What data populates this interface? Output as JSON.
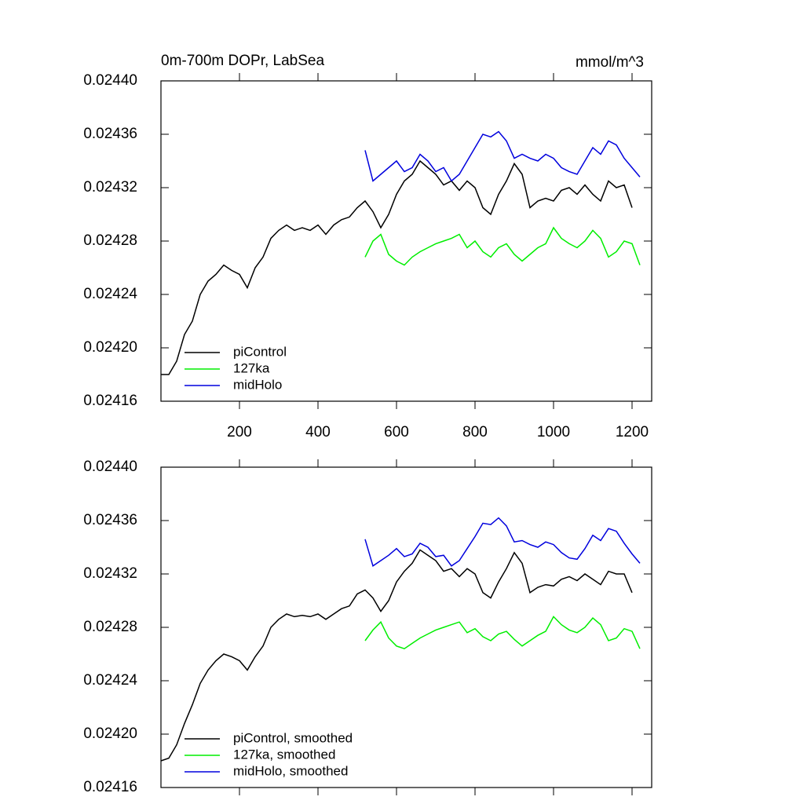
{
  "chart_data": [
    {
      "type": "line",
      "title": "0m-700m DOPr, LabSea",
      "units": "mmol/m^3",
      "xlim": [
        0,
        1250
      ],
      "xticks": [
        200,
        400,
        600,
        800,
        1000,
        1200
      ],
      "xtick_labels": true,
      "ylim": [
        0.02416,
        0.0244
      ],
      "yticks": [
        0.02416,
        {
          "value": 0.0242,
          "label": "0.02420"
        },
        0.02424,
        0.02428,
        0.02432,
        0.02436,
        {
          "value": 0.0244,
          "label": "0.02440"
        }
      ],
      "legend": "lower left",
      "series": [
        {
          "name": "piControl",
          "color": "#000000",
          "x": [
            0,
            20,
            40,
            60,
            80,
            100,
            120,
            140,
            160,
            180,
            200,
            220,
            240,
            260,
            280,
            300,
            320,
            340,
            360,
            380,
            400,
            420,
            440,
            460,
            480,
            500,
            520,
            540,
            560,
            580,
            600,
            620,
            640,
            660,
            680,
            700,
            720,
            740,
            760,
            780,
            800,
            820,
            840,
            860,
            880,
            900,
            920,
            940,
            960,
            980,
            1000,
            1020,
            1040,
            1060,
            1080,
            1100,
            1120,
            1140,
            1160,
            1180,
            1200
          ],
          "values": [
            0.02418,
            0.02418,
            0.02419,
            0.02421,
            0.02422,
            0.02424,
            0.02425,
            0.024255,
            0.024262,
            0.024258,
            0.024255,
            0.024245,
            0.02426,
            0.024268,
            0.024282,
            0.024288,
            0.024292,
            0.024288,
            0.02429,
            0.024288,
            0.024292,
            0.024285,
            0.024292,
            0.024296,
            0.024298,
            0.024305,
            0.02431,
            0.024302,
            0.02429,
            0.0243,
            0.024315,
            0.024325,
            0.02433,
            0.02434,
            0.024335,
            0.02433,
            0.024322,
            0.024325,
            0.024318,
            0.024325,
            0.02432,
            0.024305,
            0.0243,
            0.024315,
            0.024325,
            0.024338,
            0.02433,
            0.024305,
            0.02431,
            0.024312,
            0.02431,
            0.024318,
            0.02432,
            0.024315,
            0.024322,
            0.024315,
            0.02431,
            0.024325,
            0.02432,
            0.024322,
            0.024305
          ]
        },
        {
          "name": "127ka",
          "color": "#00ee00",
          "x": [
            520,
            540,
            560,
            580,
            600,
            620,
            640,
            660,
            680,
            700,
            720,
            740,
            760,
            780,
            800,
            820,
            840,
            860,
            880,
            900,
            920,
            940,
            960,
            980,
            1000,
            1020,
            1040,
            1060,
            1080,
            1100,
            1120,
            1140,
            1160,
            1180,
            1200,
            1220
          ],
          "values": [
            0.024268,
            0.02428,
            0.024285,
            0.02427,
            0.024265,
            0.024262,
            0.024268,
            0.024272,
            0.024275,
            0.024278,
            0.02428,
            0.024282,
            0.024285,
            0.024275,
            0.02428,
            0.024272,
            0.024268,
            0.024275,
            0.024278,
            0.02427,
            0.024265,
            0.02427,
            0.024275,
            0.024278,
            0.02429,
            0.024282,
            0.024278,
            0.024275,
            0.02428,
            0.024288,
            0.024282,
            0.024268,
            0.024272,
            0.02428,
            0.024278,
            0.024262
          ]
        },
        {
          "name": "midHolo",
          "color": "#0000dd",
          "x": [
            520,
            540,
            560,
            580,
            600,
            620,
            640,
            660,
            680,
            700,
            720,
            740,
            760,
            780,
            800,
            820,
            840,
            860,
            880,
            900,
            920,
            940,
            960,
            980,
            1000,
            1020,
            1040,
            1060,
            1080,
            1100,
            1120,
            1140,
            1160,
            1180,
            1200,
            1220
          ],
          "values": [
            0.024348,
            0.024325,
            0.02433,
            0.024335,
            0.02434,
            0.024332,
            0.024335,
            0.024345,
            0.02434,
            0.024332,
            0.024335,
            0.024325,
            0.02433,
            0.02434,
            0.02435,
            0.02436,
            0.024358,
            0.024362,
            0.024355,
            0.024342,
            0.024345,
            0.024342,
            0.02434,
            0.024345,
            0.024342,
            0.024335,
            0.024332,
            0.02433,
            0.02434,
            0.02435,
            0.024345,
            0.024355,
            0.024352,
            0.024342,
            0.024335,
            0.024328
          ]
        }
      ]
    },
    {
      "type": "line",
      "xlim": [
        0,
        1250
      ],
      "xticks": [
        200,
        400,
        600,
        800,
        1000,
        1200
      ],
      "xtick_labels": false,
      "ylim": [
        0.02416,
        0.0244
      ],
      "yticks": [
        0.02416,
        {
          "value": 0.0242,
          "label": "0.02420"
        },
        0.02424,
        0.02428,
        0.02432,
        0.02436,
        {
          "value": 0.0244,
          "label": "0.02440"
        }
      ],
      "legend": "lower left",
      "series": [
        {
          "name": "piControl, smoothed",
          "color": "#000000",
          "x": [
            0,
            20,
            40,
            60,
            80,
            100,
            120,
            140,
            160,
            180,
            200,
            220,
            240,
            260,
            280,
            300,
            320,
            340,
            360,
            380,
            400,
            420,
            440,
            460,
            480,
            500,
            520,
            540,
            560,
            580,
            600,
            620,
            640,
            660,
            680,
            700,
            720,
            740,
            760,
            780,
            800,
            820,
            840,
            860,
            880,
            900,
            920,
            940,
            960,
            980,
            1000,
            1020,
            1040,
            1060,
            1080,
            1100,
            1120,
            1140,
            1160,
            1180,
            1200
          ],
          "values": [
            0.02418,
            0.024182,
            0.024192,
            0.024208,
            0.024222,
            0.024238,
            0.024248,
            0.024255,
            0.02426,
            0.024258,
            0.024255,
            0.024248,
            0.024258,
            0.024266,
            0.02428,
            0.024286,
            0.02429,
            0.024288,
            0.024289,
            0.024288,
            0.02429,
            0.024286,
            0.02429,
            0.024294,
            0.024296,
            0.024305,
            0.024308,
            0.024302,
            0.024292,
            0.0243,
            0.024314,
            0.024322,
            0.024328,
            0.024338,
            0.024334,
            0.02433,
            0.024322,
            0.024324,
            0.024318,
            0.024324,
            0.02432,
            0.024306,
            0.024302,
            0.024314,
            0.024324,
            0.024336,
            0.024328,
            0.024306,
            0.02431,
            0.024312,
            0.024311,
            0.024316,
            0.024318,
            0.024315,
            0.02432,
            0.024316,
            0.024312,
            0.024322,
            0.02432,
            0.02432,
            0.024306
          ]
        },
        {
          "name": "127ka, smoothed",
          "color": "#00ee00",
          "x": [
            520,
            540,
            560,
            580,
            600,
            620,
            640,
            660,
            680,
            700,
            720,
            740,
            760,
            780,
            800,
            820,
            840,
            860,
            880,
            900,
            920,
            940,
            960,
            980,
            1000,
            1020,
            1040,
            1060,
            1080,
            1100,
            1120,
            1140,
            1160,
            1180,
            1200,
            1220
          ],
          "values": [
            0.02427,
            0.024278,
            0.024284,
            0.024272,
            0.024266,
            0.024264,
            0.024268,
            0.024272,
            0.024275,
            0.024278,
            0.02428,
            0.024282,
            0.024284,
            0.024276,
            0.024279,
            0.024273,
            0.02427,
            0.024275,
            0.024277,
            0.024271,
            0.024266,
            0.02427,
            0.024274,
            0.024277,
            0.024288,
            0.024282,
            0.024278,
            0.024276,
            0.02428,
            0.024287,
            0.024282,
            0.02427,
            0.024272,
            0.024279,
            0.024277,
            0.024264
          ]
        },
        {
          "name": "midHolo, smoothed",
          "color": "#0000dd",
          "x": [
            520,
            540,
            560,
            580,
            600,
            620,
            640,
            660,
            680,
            700,
            720,
            740,
            760,
            780,
            800,
            820,
            840,
            860,
            880,
            900,
            920,
            940,
            960,
            980,
            1000,
            1020,
            1040,
            1060,
            1080,
            1100,
            1120,
            1140,
            1160,
            1180,
            1200,
            1220
          ],
          "values": [
            0.024346,
            0.024326,
            0.02433,
            0.024334,
            0.024339,
            0.024333,
            0.024335,
            0.024343,
            0.02434,
            0.024333,
            0.024334,
            0.024326,
            0.02433,
            0.024339,
            0.024348,
            0.024358,
            0.024357,
            0.024362,
            0.024356,
            0.024344,
            0.024345,
            0.024342,
            0.02434,
            0.024344,
            0.024342,
            0.024336,
            0.024332,
            0.024331,
            0.024339,
            0.024349,
            0.024345,
            0.024354,
            0.024352,
            0.024343,
            0.024335,
            0.024328
          ]
        }
      ]
    }
  ]
}
